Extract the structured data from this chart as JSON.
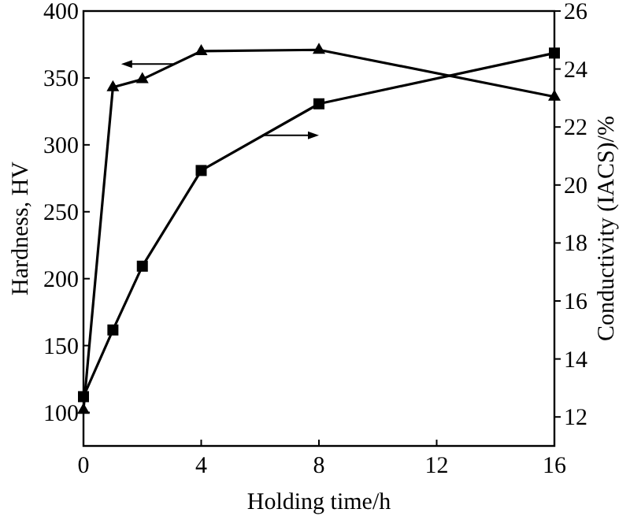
{
  "chart_data": {
    "type": "line",
    "xlabel": "Holding time/h",
    "ylabel": "Hardness, HV",
    "y2label": "Conductivity (IACS)/%",
    "xlim": [
      0,
      16
    ],
    "xticks": [
      0,
      4,
      8,
      12,
      16
    ],
    "ylim": [
      75,
      400
    ],
    "yticks": [
      100,
      150,
      200,
      250,
      300,
      350,
      400
    ],
    "y2lim": [
      11,
      26
    ],
    "y2ticks": [
      12,
      14,
      16,
      18,
      20,
      22,
      24,
      26
    ],
    "grid": false,
    "line_style": "solid",
    "series": [
      {
        "x": [
          0,
          1,
          2,
          4,
          8,
          16
        ],
        "values": [
          102,
          343,
          349,
          370,
          371,
          336
        ],
        "color": "#000000",
        "marker": "triangle"
      },
      {
        "x": [
          0,
          1,
          2,
          4,
          8,
          16
        ],
        "values": [
          12.7,
          15.0,
          17.2,
          20.5,
          22.8,
          24.55
        ],
        "color": "#000000",
        "marker": "square",
        "axis": "y2"
      }
    ]
  }
}
